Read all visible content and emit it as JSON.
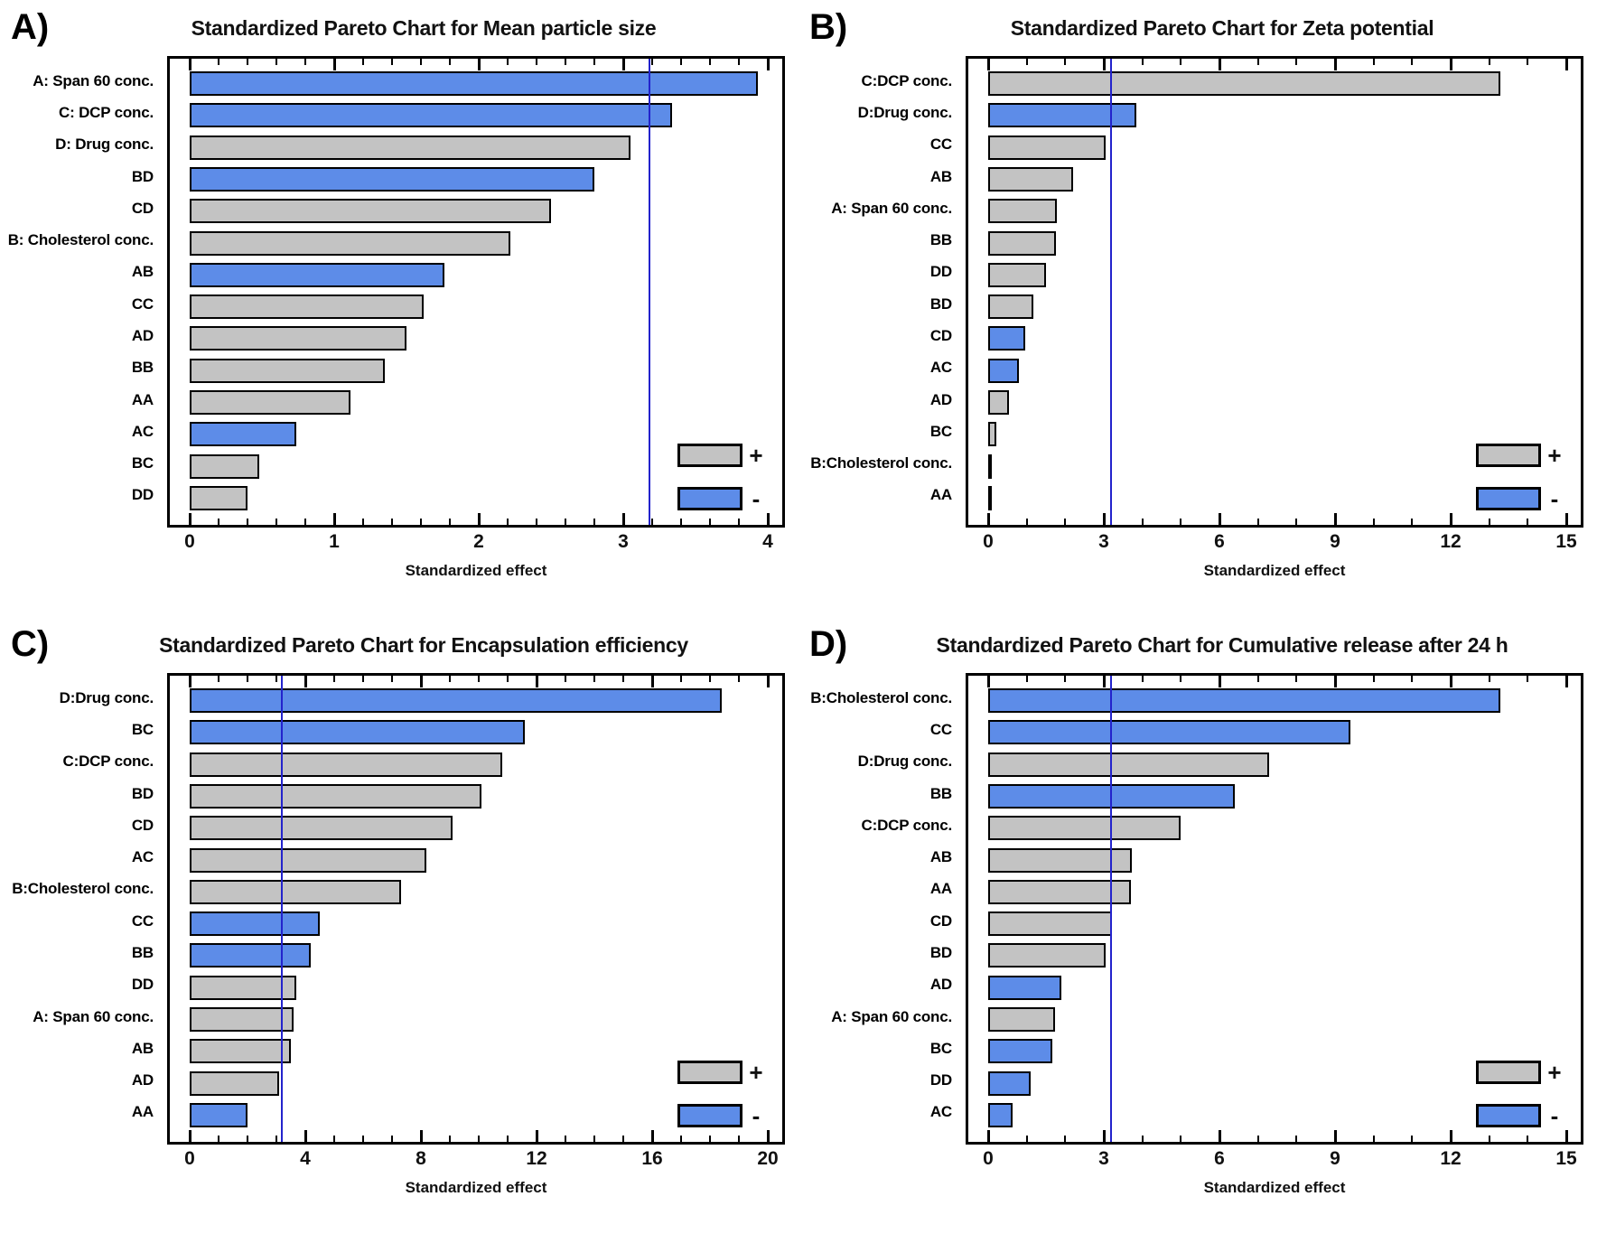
{
  "page": {
    "background": "#ffffff"
  },
  "colors": {
    "positive_fill": "#c3c3c3",
    "negative_fill": "#5d8ce8",
    "bar_border": "#000000",
    "reference_line": "#2323cc",
    "frame": "#000000",
    "text": "#111111"
  },
  "chart_data": [
    {
      "id": "A",
      "panel_label": "A)",
      "type": "bar",
      "title": "Standardized Pareto Chart for Mean particle size",
      "xlabel": "Standardized effect",
      "xlim": [
        0,
        4
      ],
      "major_ticks": [
        0,
        1,
        2,
        3,
        4
      ],
      "minor_step": 0.2,
      "reference_line": 3.18,
      "legend": {
        "plus_label": "+",
        "minus_label": "-"
      },
      "bars": [
        {
          "label": "A: Span 60 conc.",
          "value": 3.93,
          "sign": "-"
        },
        {
          "label": "C: DCP conc.",
          "value": 3.34,
          "sign": "-"
        },
        {
          "label": "D: Drug conc.",
          "value": 3.05,
          "sign": "+"
        },
        {
          "label": "BD",
          "value": 2.8,
          "sign": "-"
        },
        {
          "label": "CD",
          "value": 2.5,
          "sign": "+"
        },
        {
          "label": "B: Cholesterol conc.",
          "value": 2.22,
          "sign": "+"
        },
        {
          "label": "AB",
          "value": 1.76,
          "sign": "-"
        },
        {
          "label": "CC",
          "value": 1.62,
          "sign": "+"
        },
        {
          "label": "AD",
          "value": 1.5,
          "sign": "+"
        },
        {
          "label": "BB",
          "value": 1.35,
          "sign": "+"
        },
        {
          "label": "AA",
          "value": 1.11,
          "sign": "+"
        },
        {
          "label": "AC",
          "value": 0.74,
          "sign": "-"
        },
        {
          "label": "BC",
          "value": 0.48,
          "sign": "+"
        },
        {
          "label": "DD",
          "value": 0.4,
          "sign": "+"
        }
      ]
    },
    {
      "id": "B",
      "panel_label": "B)",
      "type": "bar",
      "title": "Standardized Pareto Chart for Zeta potential",
      "xlabel": "Standardized effect",
      "xlim": [
        0,
        15
      ],
      "major_ticks": [
        0,
        3,
        6,
        9,
        12,
        15
      ],
      "minor_step": 1,
      "reference_line": 3.18,
      "legend": {
        "plus_label": "+",
        "minus_label": "-"
      },
      "bars": [
        {
          "label": "C:DCP conc.",
          "value": 13.3,
          "sign": "+"
        },
        {
          "label": "D:Drug conc.",
          "value": 3.85,
          "sign": "-"
        },
        {
          "label": "CC",
          "value": 3.05,
          "sign": "+"
        },
        {
          "label": "AB",
          "value": 2.2,
          "sign": "+"
        },
        {
          "label": "A: Span 60 conc.",
          "value": 1.77,
          "sign": "+"
        },
        {
          "label": "BB",
          "value": 1.75,
          "sign": "+"
        },
        {
          "label": "DD",
          "value": 1.5,
          "sign": "+"
        },
        {
          "label": "BD",
          "value": 1.17,
          "sign": "+"
        },
        {
          "label": "CD",
          "value": 0.95,
          "sign": "-"
        },
        {
          "label": "AC",
          "value": 0.79,
          "sign": "-"
        },
        {
          "label": "AD",
          "value": 0.53,
          "sign": "+"
        },
        {
          "label": "BC",
          "value": 0.2,
          "sign": "+"
        },
        {
          "label": "B:Cholesterol conc.",
          "value": 0.09,
          "sign": "-"
        },
        {
          "label": "AA",
          "value": 0.04,
          "sign": "+"
        }
      ]
    },
    {
      "id": "C",
      "panel_label": "C)",
      "type": "bar",
      "title": "Standardized Pareto Chart for Encapsulation efficiency",
      "xlabel": "Standardized effect",
      "xlim": [
        0,
        20
      ],
      "major_ticks": [
        0,
        4,
        8,
        12,
        16,
        20
      ],
      "minor_step": 1,
      "reference_line": 3.18,
      "legend": {
        "plus_label": "+",
        "minus_label": "-"
      },
      "bars": [
        {
          "label": "D:Drug conc.",
          "value": 18.4,
          "sign": "-"
        },
        {
          "label": "BC",
          "value": 11.6,
          "sign": "-"
        },
        {
          "label": "C:DCP conc.",
          "value": 10.8,
          "sign": "+"
        },
        {
          "label": "BD",
          "value": 10.1,
          "sign": "+"
        },
        {
          "label": "CD",
          "value": 9.1,
          "sign": "+"
        },
        {
          "label": "AC",
          "value": 8.2,
          "sign": "+"
        },
        {
          "label": "B:Cholesterol conc.",
          "value": 7.3,
          "sign": "+"
        },
        {
          "label": "CC",
          "value": 4.5,
          "sign": "-"
        },
        {
          "label": "BB",
          "value": 4.2,
          "sign": "-"
        },
        {
          "label": "DD",
          "value": 3.7,
          "sign": "+"
        },
        {
          "label": "A: Span 60 conc.",
          "value": 3.6,
          "sign": "+"
        },
        {
          "label": "AB",
          "value": 3.5,
          "sign": "+"
        },
        {
          "label": "AD",
          "value": 3.1,
          "sign": "+"
        },
        {
          "label": "AA",
          "value": 2.0,
          "sign": "-"
        }
      ]
    },
    {
      "id": "D",
      "panel_label": "D)",
      "type": "bar",
      "title": "Standardized Pareto Chart for Cumulative release after 24 h",
      "xlabel": "Standardized effect",
      "xlim": [
        0,
        15
      ],
      "major_ticks": [
        0,
        3,
        6,
        9,
        12,
        15
      ],
      "minor_step": 1,
      "reference_line": 3.18,
      "legend": {
        "plus_label": "+",
        "minus_label": "-"
      },
      "bars": [
        {
          "label": "B:Cholesterol conc.",
          "value": 13.3,
          "sign": "-"
        },
        {
          "label": "CC",
          "value": 9.4,
          "sign": "-"
        },
        {
          "label": "D:Drug conc.",
          "value": 7.3,
          "sign": "+"
        },
        {
          "label": "BB",
          "value": 6.4,
          "sign": "-"
        },
        {
          "label": "C:DCP conc.",
          "value": 5.0,
          "sign": "+"
        },
        {
          "label": "AB",
          "value": 3.72,
          "sign": "+"
        },
        {
          "label": "AA",
          "value": 3.7,
          "sign": "+"
        },
        {
          "label": "CD",
          "value": 3.2,
          "sign": "+"
        },
        {
          "label": "BD",
          "value": 3.05,
          "sign": "+"
        },
        {
          "label": "AD",
          "value": 1.9,
          "sign": "-"
        },
        {
          "label": "A: Span 60 conc.",
          "value": 1.74,
          "sign": "+"
        },
        {
          "label": "BC",
          "value": 1.67,
          "sign": "-"
        },
        {
          "label": "DD",
          "value": 1.1,
          "sign": "-"
        },
        {
          "label": "AC",
          "value": 0.64,
          "sign": "-"
        }
      ]
    }
  ]
}
